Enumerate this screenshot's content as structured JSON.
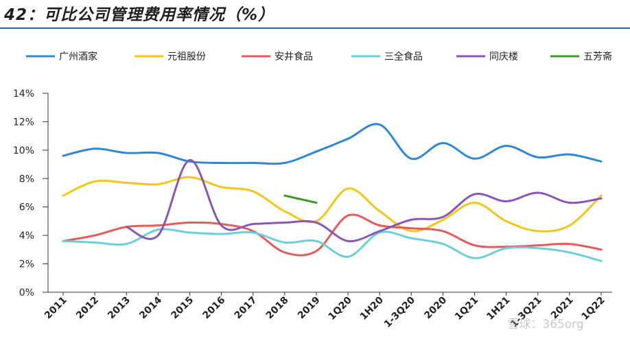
{
  "title": "42：可比公司管理费用率情况（%）",
  "watermark": "雪球：365org",
  "chart_data": {
    "type": "line",
    "ylabel": "",
    "xlabel": "",
    "ylim": [
      0,
      14
    ],
    "yticks": [
      "0%",
      "2%",
      "4%",
      "6%",
      "8%",
      "10%",
      "12%",
      "14%"
    ],
    "categories": [
      "2011",
      "2012",
      "2013",
      "2014",
      "2015",
      "2016",
      "2017",
      "2018",
      "2019",
      "1Q20",
      "1H20",
      "1-3Q20",
      "2020",
      "1Q21",
      "1H21",
      "1-3Q21",
      "2021",
      "1Q22"
    ],
    "legend_position": "top",
    "series": [
      {
        "name": "广州酒家",
        "color": "#2e86d4",
        "values": [
          9.6,
          10.1,
          9.8,
          9.8,
          9.2,
          9.1,
          9.1,
          9.1,
          9.9,
          10.8,
          11.8,
          9.4,
          10.5,
          9.4,
          10.3,
          9.5,
          9.7,
          9.2
        ]
      },
      {
        "name": "元祖股份",
        "color": "#f5c518",
        "values": [
          6.8,
          7.8,
          7.7,
          7.6,
          8.1,
          7.4,
          7.1,
          5.7,
          5.0,
          7.3,
          5.7,
          4.3,
          5.1,
          6.3,
          5.0,
          4.3,
          4.7,
          6.8
        ]
      },
      {
        "name": "安井食品",
        "color": "#e85a5a",
        "values": [
          3.6,
          4.0,
          4.6,
          4.7,
          4.9,
          4.8,
          4.3,
          2.8,
          2.9,
          5.4,
          4.7,
          4.5,
          4.3,
          3.3,
          3.2,
          3.3,
          3.4,
          3.0
        ]
      },
      {
        "name": "三全食品",
        "color": "#6ccfd8",
        "values": [
          3.6,
          3.5,
          3.4,
          4.4,
          4.2,
          4.1,
          4.2,
          3.5,
          3.6,
          2.5,
          4.2,
          3.8,
          3.4,
          2.4,
          3.1,
          3.1,
          2.8,
          2.2
        ]
      },
      {
        "name": "同庆楼",
        "color": "#8a56b5",
        "values": [
          null,
          null,
          4.6,
          4.0,
          9.3,
          4.7,
          4.8,
          4.9,
          4.9,
          3.6,
          4.3,
          5.1,
          5.3,
          6.9,
          6.4,
          7.0,
          6.3,
          6.6
        ]
      },
      {
        "name": "五芳斋",
        "color": "#3c9a2a",
        "values": [
          null,
          null,
          null,
          null,
          null,
          null,
          null,
          6.8,
          6.3,
          null,
          null,
          null,
          null,
          null,
          null,
          null,
          null,
          null
        ]
      }
    ]
  }
}
